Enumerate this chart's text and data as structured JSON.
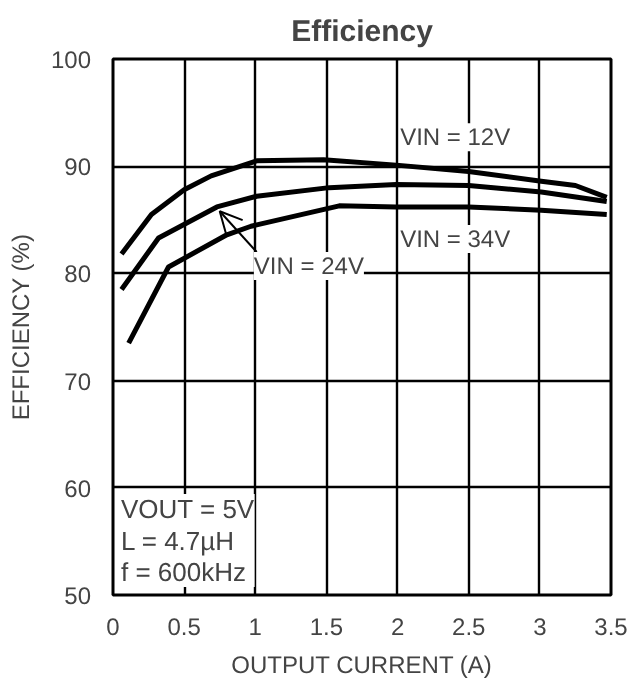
{
  "chart_data": {
    "type": "line",
    "title": "Efficiency",
    "xlabel": "OUTPUT CURRENT (A)",
    "ylabel": "EFFICIENCY (%)",
    "xlim": [
      0,
      3.5
    ],
    "ylim": [
      50,
      100
    ],
    "xticks": [
      0,
      0.5,
      1,
      1.5,
      2,
      2.5,
      3,
      3.5
    ],
    "yticks": [
      50,
      60,
      70,
      80,
      90,
      100
    ],
    "grid": true,
    "line_style": "solid",
    "series": [
      {
        "name": "VIN = 12V",
        "color": "#000000",
        "x": [
          0.06,
          0.27,
          0.5,
          0.69,
          1.01,
          1.48,
          1.99,
          2.5,
          3.01,
          3.25,
          3.47
        ],
        "values": [
          81.8,
          85.5,
          87.8,
          89.1,
          90.5,
          90.6,
          90.1,
          89.5,
          88.6,
          88.2,
          87.1
        ]
      },
      {
        "name": "VIN = 24V",
        "color": "#000000",
        "x": [
          0.06,
          0.32,
          0.73,
          1.01,
          1.52,
          1.99,
          2.5,
          3.01,
          3.47
        ],
        "values": [
          78.5,
          83.3,
          86.2,
          87.2,
          88.0,
          88.3,
          88.2,
          87.6,
          86.7
        ]
      },
      {
        "name": "VIN = 34V",
        "color": "#000000",
        "x": [
          0.11,
          0.39,
          0.8,
          0.97,
          1.59,
          1.99,
          2.5,
          3.01,
          3.47
        ],
        "values": [
          73.5,
          80.6,
          83.6,
          84.4,
          86.3,
          86.2,
          86.2,
          85.9,
          85.5
        ]
      }
    ],
    "annotations": [
      "VOUT = 5V",
      "L = 4.7µH",
      "f = 600kHz"
    ]
  }
}
